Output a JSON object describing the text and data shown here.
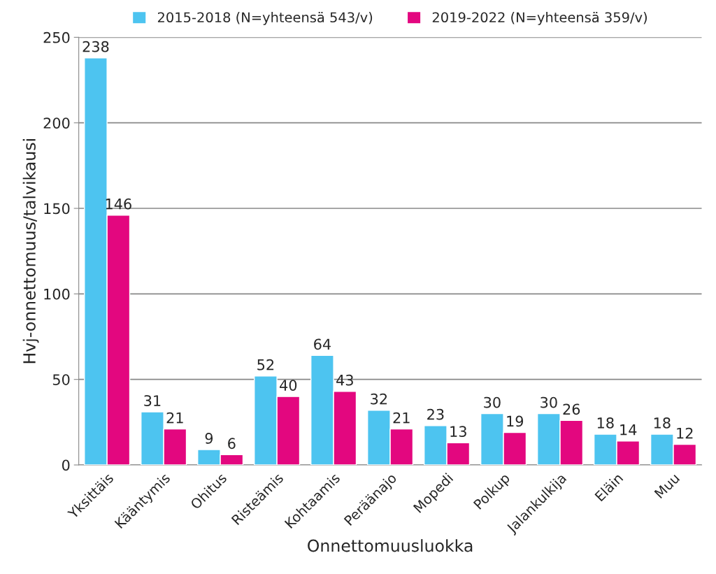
{
  "chart_data": {
    "type": "bar",
    "xlabel": "Onnettomuusluokka",
    "ylabel": "Hvj-onnettomuus/talvikausi",
    "categories": [
      "Yksittäis",
      "Kääntymis",
      "Ohitus",
      "Risteämis",
      "Kohtaamis",
      "Peräänajo",
      "Mopedi",
      "Polkup",
      "Jalankulkija",
      "Eläin",
      "Muu"
    ],
    "series": [
      {
        "name": "2015-2018 (N=yhteensä 543/v)",
        "color": "#4dc4f0",
        "values": [
          238,
          31,
          9,
          52,
          64,
          32,
          23,
          30,
          30,
          18,
          18
        ]
      },
      {
        "name": "2019-2022 (N=yhteensä 359/v)",
        "color": "#e3077f",
        "values": [
          146,
          21,
          6,
          40,
          43,
          21,
          13,
          19,
          26,
          14,
          12
        ]
      }
    ],
    "ylim": [
      0,
      250
    ],
    "yticks": [
      0,
      50,
      100,
      150,
      200,
      250
    ],
    "grid": "y",
    "legend": "top",
    "data_labels": true
  }
}
